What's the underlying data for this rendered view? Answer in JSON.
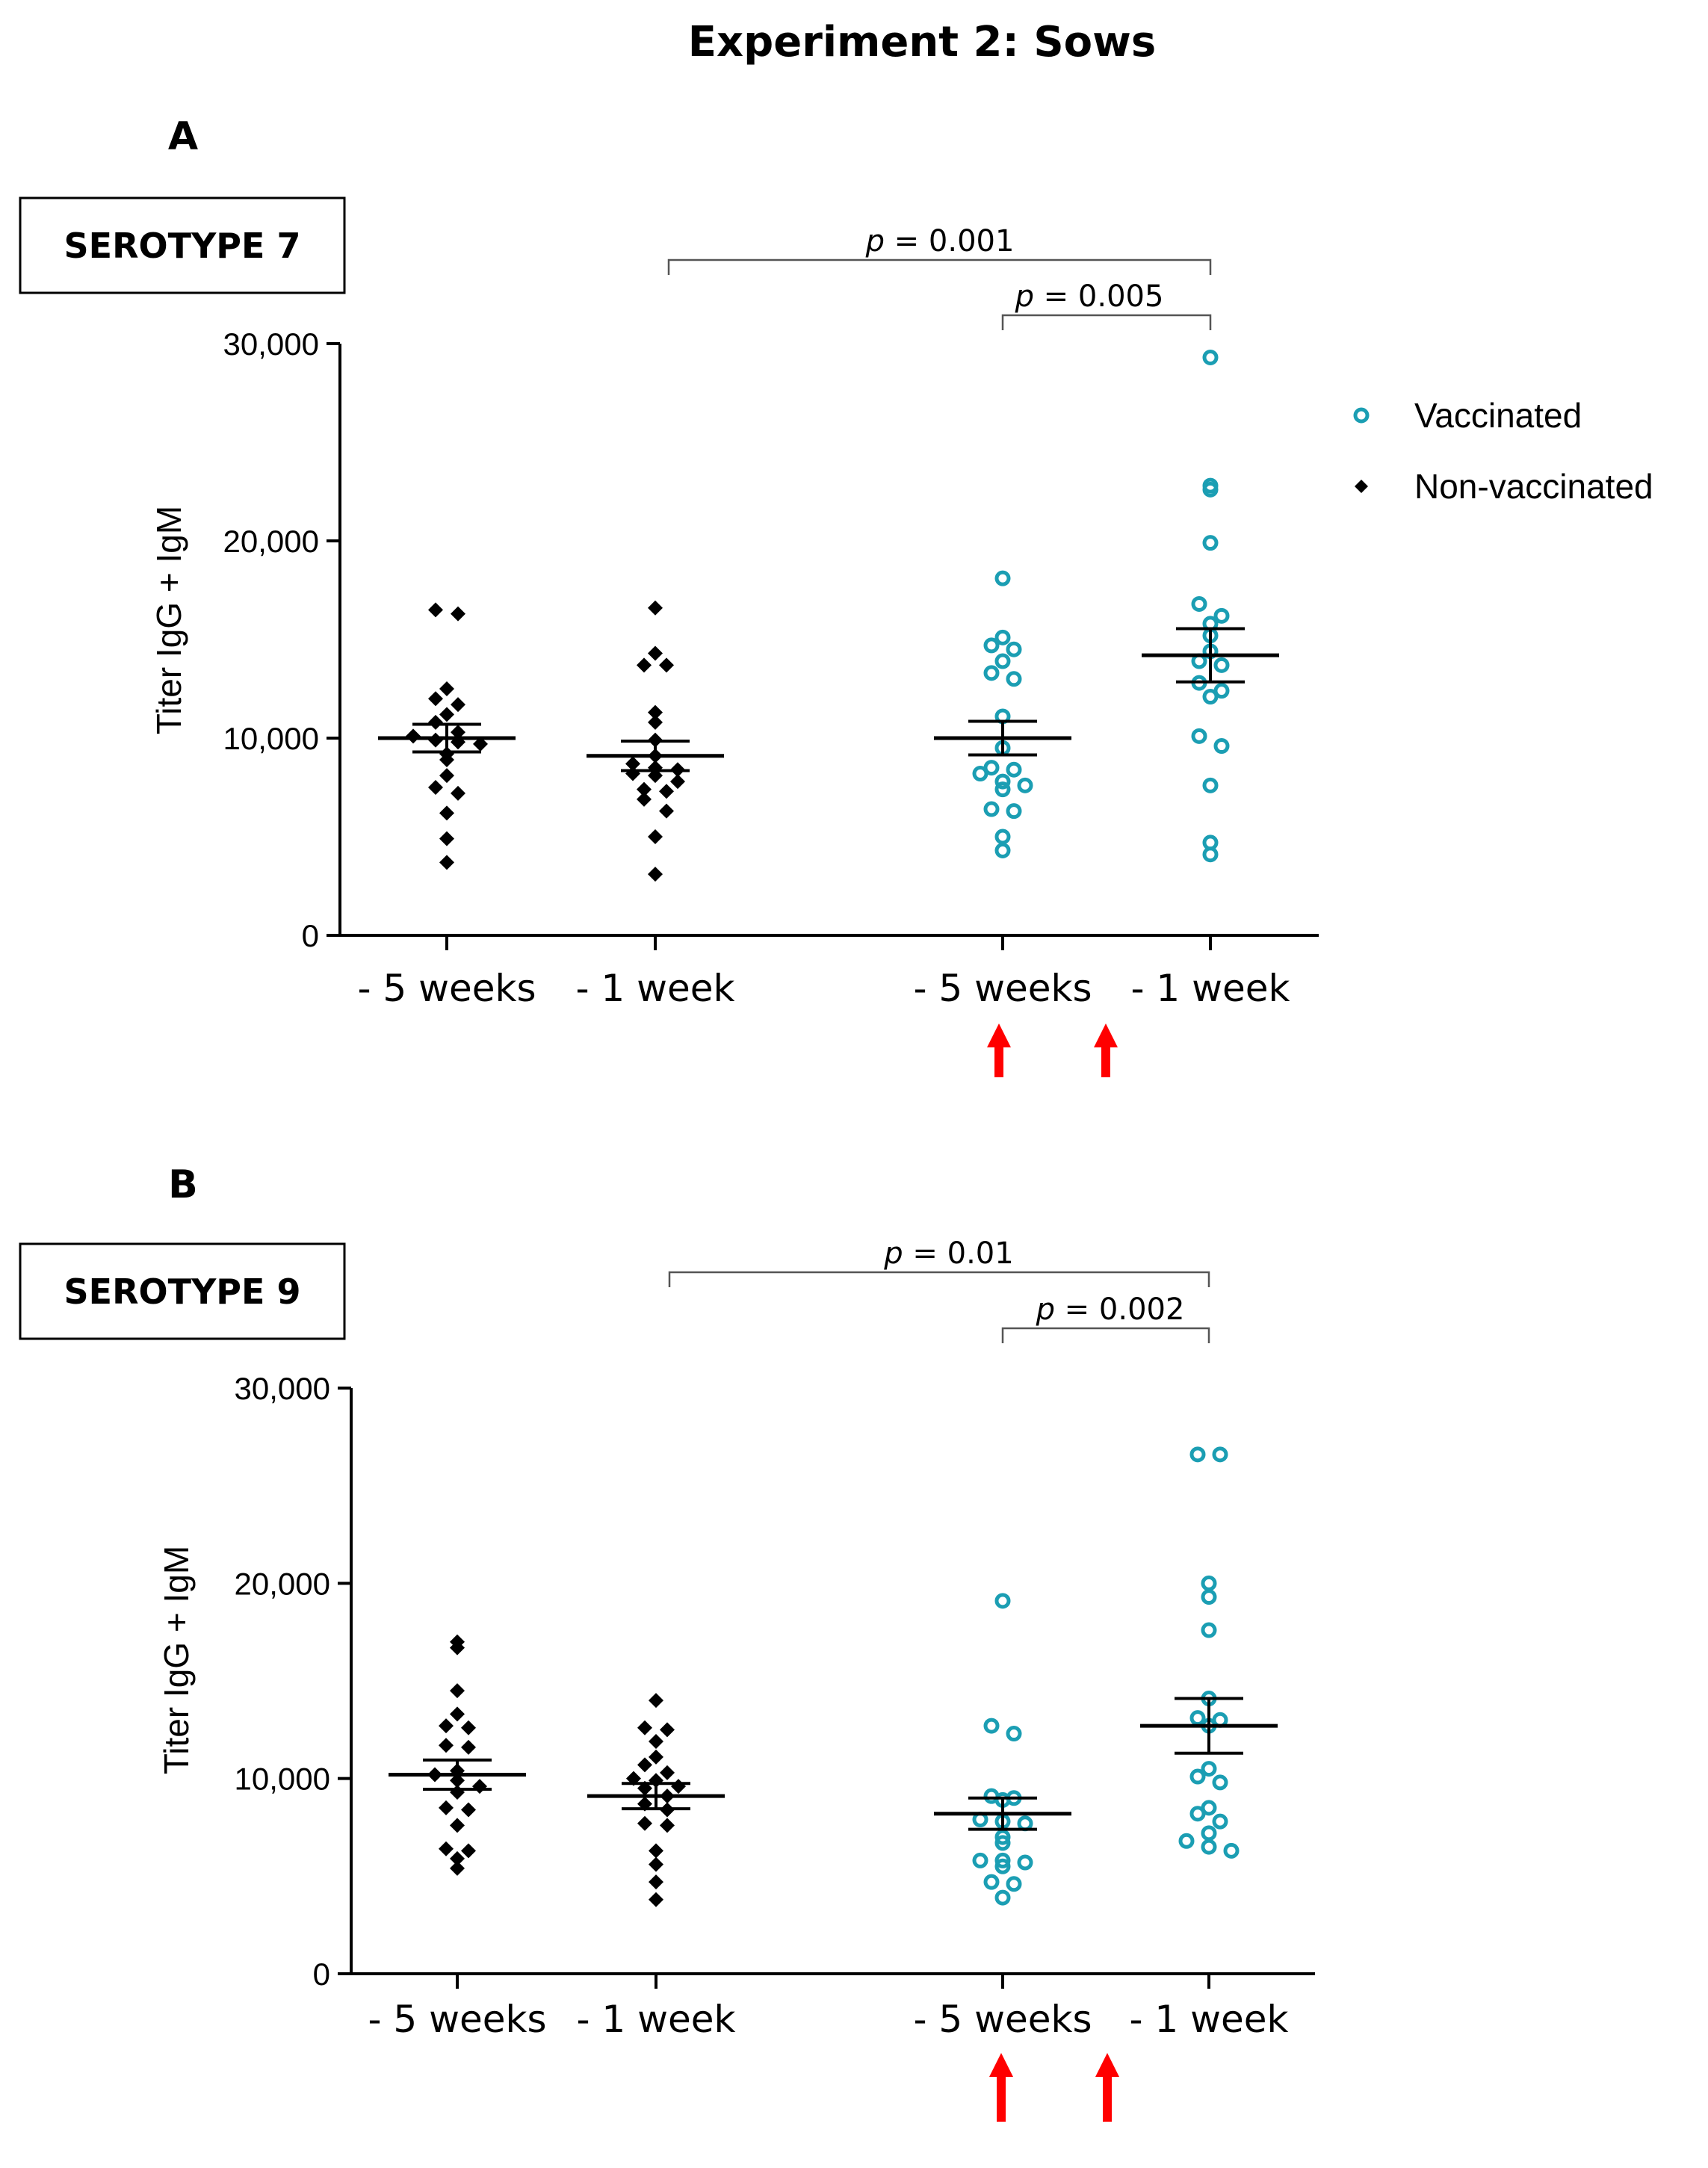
{
  "figure_title": "Experiment 2: Sows",
  "legend": {
    "vaccinated_label": "Vaccinated",
    "nonvaccinated_label": "Non-vaccinated"
  },
  "colors": {
    "vaccinated": "#1b9eb3",
    "nonvaccinated": "#000000",
    "arrow": "#ff0000",
    "axis": "#000000"
  },
  "chart_data": [
    {
      "type": "scatter",
      "panel": "A",
      "serotype_label": "SEROTYPE 7",
      "ylabel": "Titer IgG + IgM",
      "ylim": [
        0,
        30000
      ],
      "yticks": [
        0,
        10000,
        20000,
        30000
      ],
      "ytick_labels": [
        "0",
        "10,000",
        "20,000",
        "30,000"
      ],
      "categories": [
        "- 5 weeks",
        "- 1 week",
        "- 5 weeks",
        "- 1 week"
      ],
      "arrow_categories": [
        2,
        3
      ],
      "groups": [
        {
          "category": "- 5 weeks",
          "series": "Non-vaccinated",
          "mean": 10000,
          "sem": 700,
          "values": [
            16500,
            16300,
            12500,
            12000,
            11700,
            11200,
            10800,
            10300,
            10100,
            9900,
            9800,
            9700,
            9200,
            8900,
            8100,
            7500,
            7200,
            6200,
            4900,
            3700
          ]
        },
        {
          "category": "- 1 week",
          "series": "Non-vaccinated",
          "mean": 9100,
          "sem": 750,
          "values": [
            16600,
            14300,
            13700,
            13700,
            11300,
            10800,
            9900,
            9100,
            8700,
            8500,
            8400,
            8200,
            8100,
            7800,
            7400,
            7300,
            6900,
            6300,
            5000,
            3100
          ]
        },
        {
          "category": "- 5 weeks",
          "series": "Vaccinated",
          "mean": 10000,
          "sem": 850,
          "values": [
            18100,
            15100,
            14700,
            14500,
            13900,
            13300,
            13000,
            11100,
            9500,
            8500,
            8400,
            8200,
            7800,
            7600,
            7400,
            6400,
            6300,
            5000,
            4300
          ]
        },
        {
          "category": "- 1 week",
          "series": "Vaccinated",
          "mean": 14200,
          "sem": 1350,
          "values": [
            29300,
            22800,
            22600,
            19900,
            16800,
            16200,
            15800,
            15200,
            14400,
            13900,
            13700,
            12800,
            12400,
            12100,
            10100,
            9600,
            7600,
            4700,
            4100
          ]
        }
      ],
      "comparisons": [
        {
          "label_p": "p",
          "label_rest": " = 0.001",
          "from": 1,
          "to": 3
        },
        {
          "label_p": "p",
          "label_rest": " = 0.005",
          "from": 2,
          "to": 3
        }
      ]
    },
    {
      "type": "scatter",
      "panel": "B",
      "serotype_label": "SEROTYPE 9",
      "ylabel": "Titer IgG + IgM",
      "ylim": [
        0,
        30000
      ],
      "yticks": [
        0,
        10000,
        20000,
        30000
      ],
      "ytick_labels": [
        "0",
        "10,000",
        "20,000",
        "30,000"
      ],
      "categories": [
        "- 5 weeks",
        "- 1 week",
        "- 5 weeks",
        "- 1 week"
      ],
      "arrow_categories": [
        2,
        3
      ],
      "groups": [
        {
          "category": "- 5 weeks",
          "series": "Non-vaccinated",
          "mean": 10200,
          "sem": 750,
          "values": [
            17000,
            16700,
            14500,
            13300,
            12700,
            12600,
            11700,
            11600,
            10400,
            10200,
            9900,
            9600,
            9300,
            8500,
            8400,
            7600,
            6400,
            6300,
            5900,
            5400
          ]
        },
        {
          "category": "- 1 week",
          "series": "Non-vaccinated",
          "mean": 9100,
          "sem": 650,
          "values": [
            14000,
            12600,
            12500,
            11900,
            11100,
            10700,
            10300,
            10000,
            9900,
            9600,
            9500,
            9100,
            8700,
            8400,
            7700,
            7600,
            6300,
            5600,
            4700,
            3800
          ]
        },
        {
          "category": "- 5 weeks",
          "series": "Vaccinated",
          "mean": 8200,
          "sem": 800,
          "values": [
            19100,
            12700,
            12300,
            9100,
            9000,
            8900,
            7900,
            7800,
            7700,
            7000,
            6700,
            5800,
            5800,
            5700,
            5500,
            4700,
            4600,
            3900
          ]
        },
        {
          "category": "- 1 week",
          "series": "Vaccinated",
          "mean": 12700,
          "sem": 1400,
          "values": [
            26600,
            26600,
            20000,
            19300,
            17600,
            14100,
            13100,
            13000,
            12700,
            10500,
            10100,
            9800,
            8500,
            8200,
            7800,
            7200,
            6800,
            6500,
            6300
          ]
        }
      ],
      "comparisons": [
        {
          "label_p": "p",
          "label_rest": " = 0.01",
          "from": 1,
          "to": 3
        },
        {
          "label_p": "p",
          "label_rest": " = 0.002",
          "from": 2,
          "to": 3
        }
      ]
    }
  ]
}
